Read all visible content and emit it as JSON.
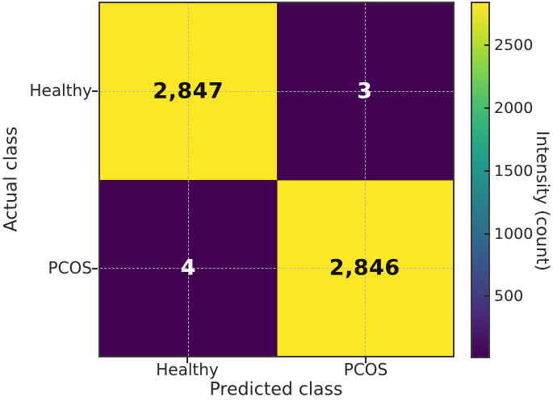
{
  "chart_data": {
    "type": "heatmap",
    "title": "",
    "xlabel": "Predicted class",
    "ylabel": "Actual class",
    "x_categories": [
      "Healthy",
      "PCOS"
    ],
    "y_categories": [
      "Healthy",
      "PCOS"
    ],
    "values": [
      [
        2847,
        3
      ],
      [
        4,
        2846
      ]
    ],
    "cell_labels": [
      [
        "2,847",
        "3"
      ],
      [
        "4",
        "2,846"
      ]
    ],
    "colormap": "viridis",
    "colors": {
      "high": "#FDE725",
      "low": "#440154",
      "text_on_high": "#111111",
      "text_on_low": "#ffffff"
    },
    "grid": "dashed lines through cell centers",
    "colorbar": {
      "position": "right",
      "label": "Intensity (count)",
      "tick_labels_top_to_bottom": [
        "2500",
        "2000",
        "1500",
        "1000",
        "500"
      ],
      "tick_values": [
        2500,
        2000,
        1500,
        1000,
        500
      ],
      "vmin": 3,
      "vmax": 2847
    }
  }
}
